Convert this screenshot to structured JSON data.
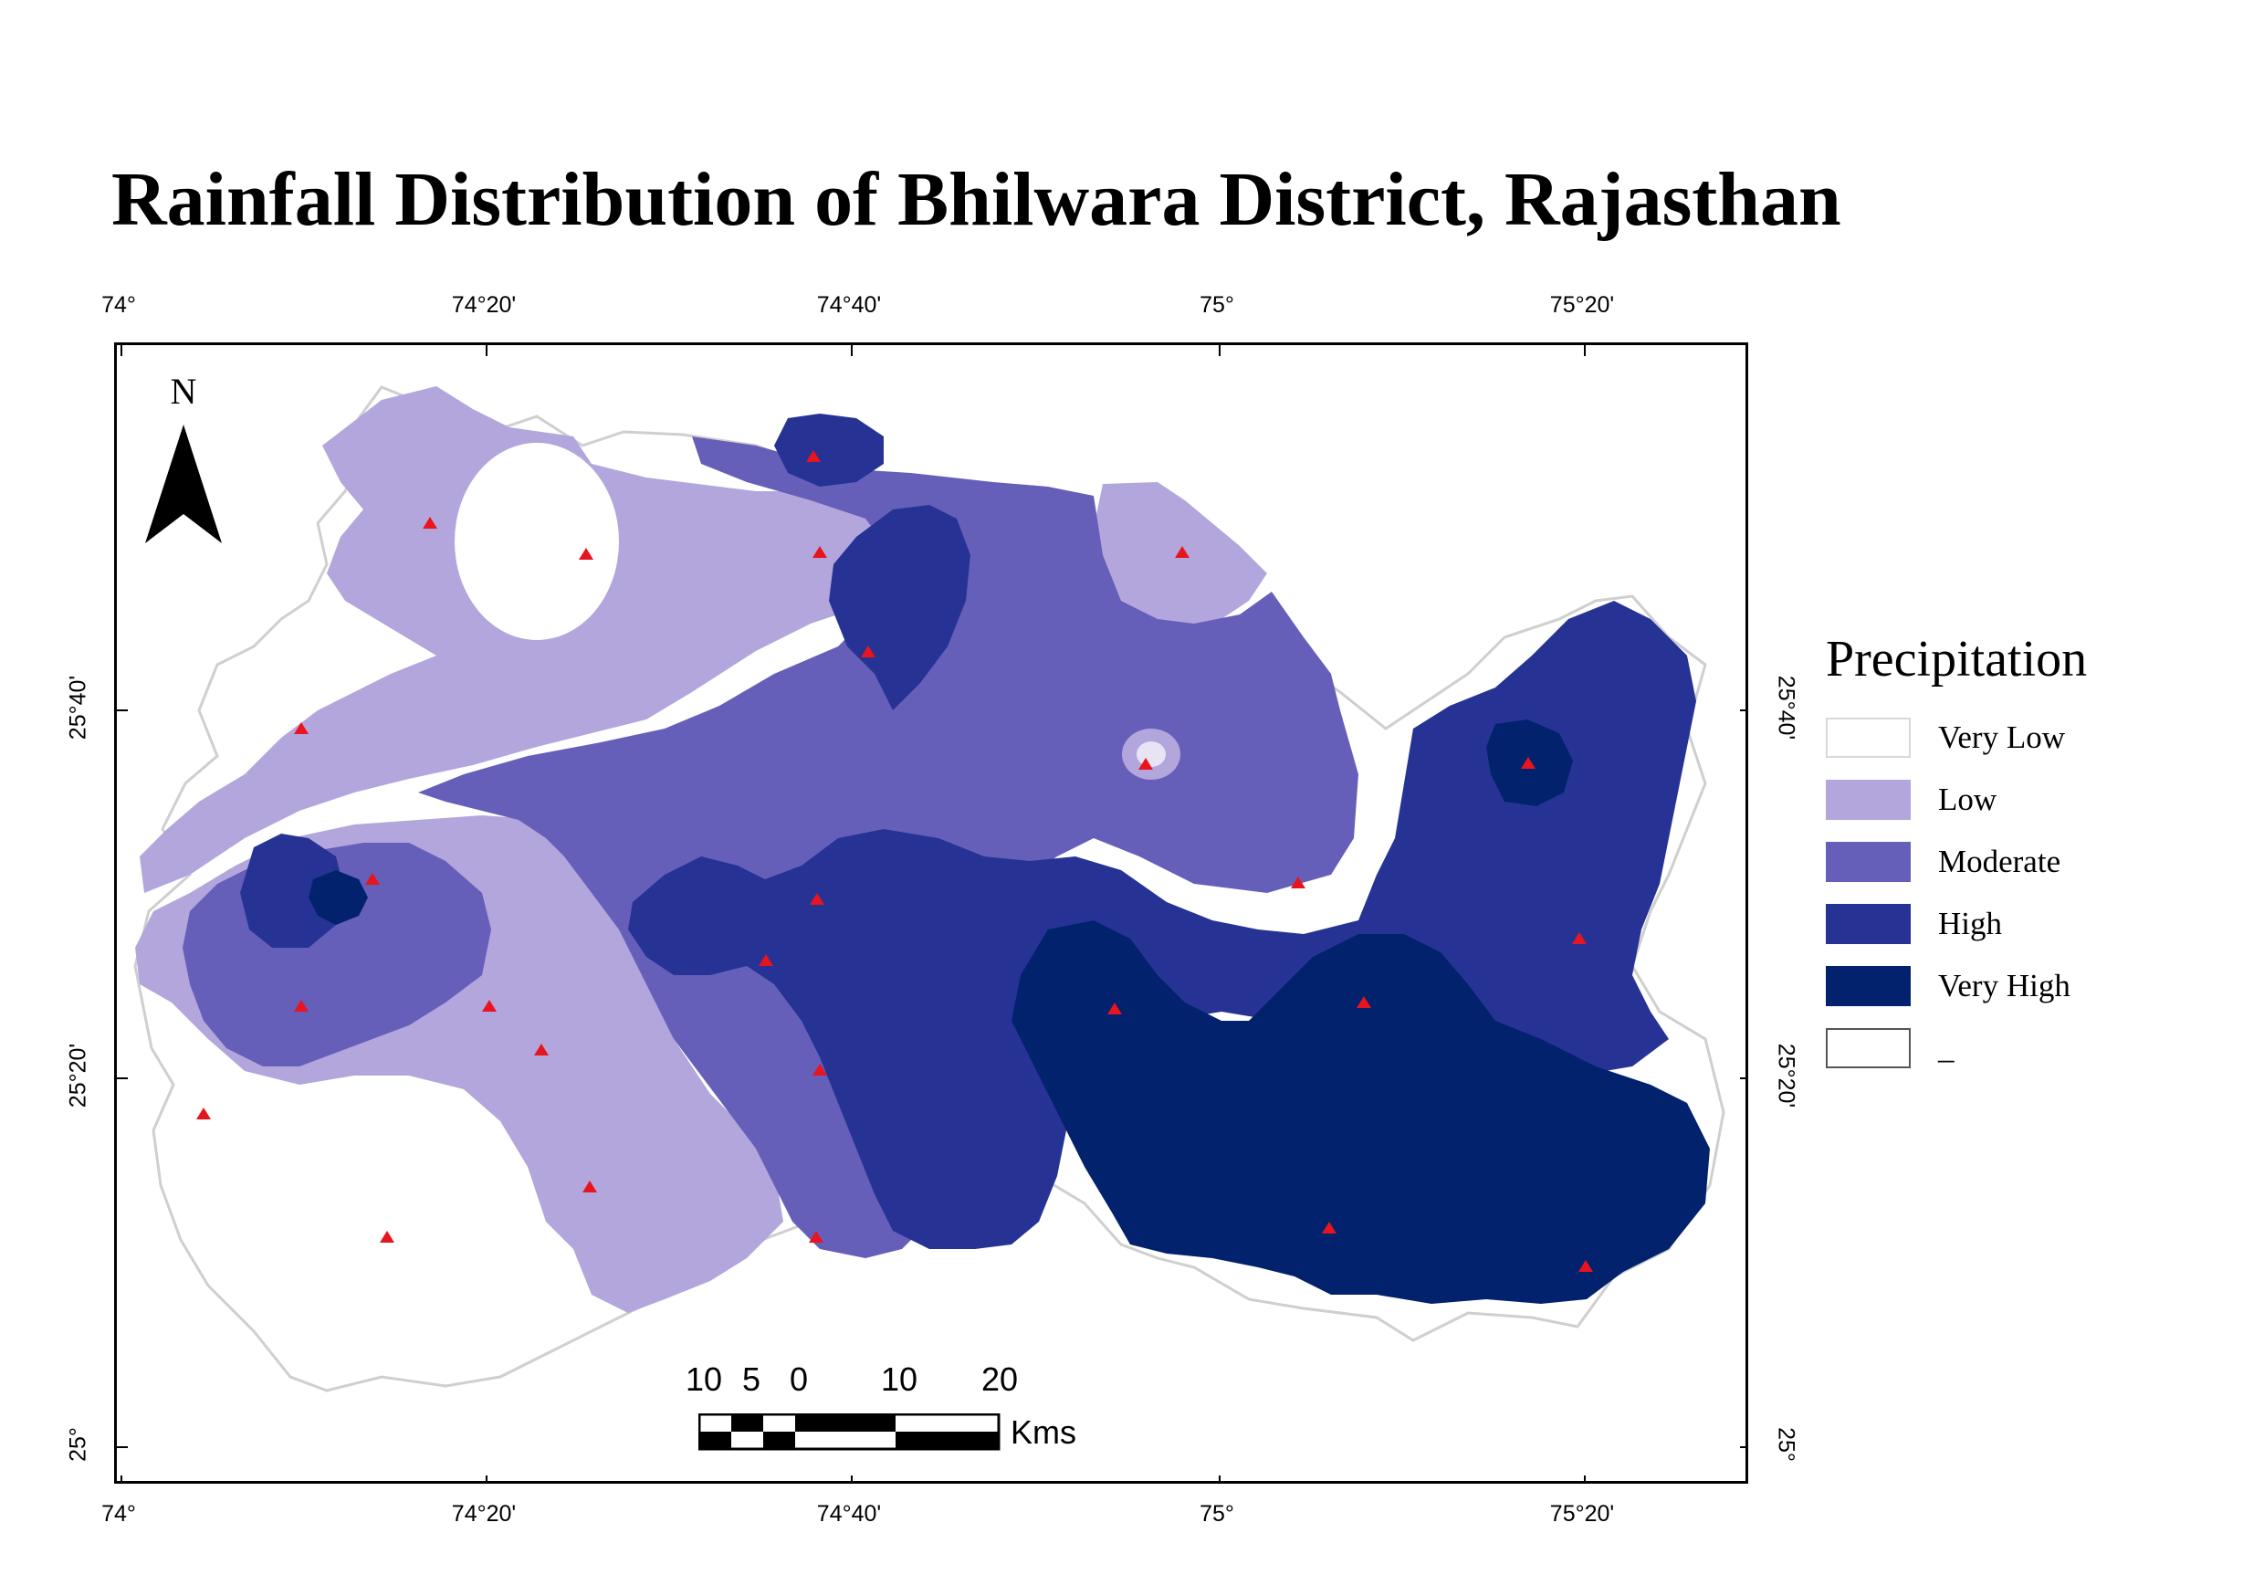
{
  "title": "Rainfall Distribution of Bhilwara District, Rajasthan",
  "graticule": {
    "longitude_labels": [
      "74°",
      "74°20'",
      "74°40'",
      "75°",
      "75°20'"
    ],
    "latitude_labels": [
      "25°",
      "25°20'",
      "25°40'"
    ]
  },
  "north_arrow": {
    "letter": "N"
  },
  "scale_bar": {
    "labels": [
      "10",
      "5",
      "0",
      "10",
      "20"
    ],
    "units": "Kms"
  },
  "legend": {
    "title": "Precipitation",
    "items": [
      {
        "label": "Very Low",
        "color": "#ffffff"
      },
      {
        "label": "Low",
        "color": "#b3a6dc"
      },
      {
        "label": "Moderate",
        "color": "#665fba"
      },
      {
        "label": "High",
        "color": "#263394"
      },
      {
        "label": "Very High",
        "color": "#02226e"
      },
      {
        "label": "_",
        "color": "#ffffff"
      }
    ]
  },
  "zones": {
    "very_low_color": "#ffffff",
    "low_color": "#b3a6dc",
    "moderate_color": "#665fba",
    "high_color": "#263394",
    "very_high_color": "#02226e"
  },
  "stations": {
    "symbol": "red-triangle",
    "color": "#e8141e",
    "count": 25
  }
}
